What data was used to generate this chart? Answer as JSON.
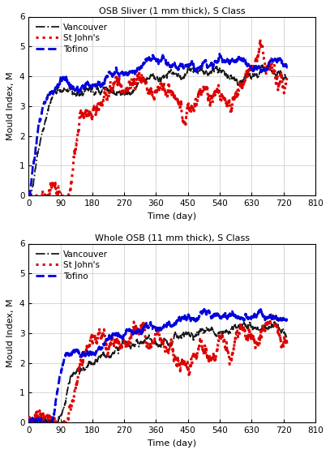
{
  "title1": "OSB Sliver (1 mm thick), S Class",
  "title2": "Whole OSB (11 mm thick), S Class",
  "xlabel": "Time (day)",
  "ylabel": "Mould Index, M",
  "xlim": [
    0,
    810
  ],
  "ylim": [
    0,
    6
  ],
  "xticks": [
    0,
    90,
    180,
    270,
    360,
    450,
    540,
    630,
    720,
    810
  ],
  "yticks": [
    0,
    1,
    2,
    3,
    4,
    5,
    6
  ],
  "legend_labels": [
    "Vancouver",
    "St John's",
    "Tofino"
  ],
  "colors": {
    "vancouver": "#1a1a1a",
    "stjohns": "#dd0000",
    "tofino": "#0000dd"
  },
  "background": "#ffffff",
  "grid_color": "#c8c8c8"
}
